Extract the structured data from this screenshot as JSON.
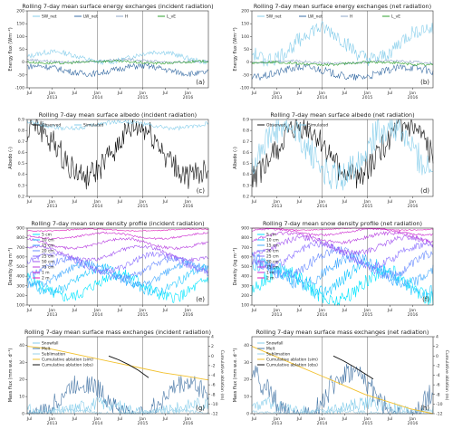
{
  "chart_data": [
    {
      "id": "a",
      "type": "line",
      "title": "Rolling 7-day mean surface energy exchanges (incident radiation)",
      "ylabel": "Energy flux (Wm⁻²)",
      "ylim": [
        -100,
        200
      ],
      "yticks": [
        "200",
        "150",
        "100",
        "50",
        "0",
        "-50",
        "-100"
      ],
      "panel_label": "(a)",
      "legend": [
        "SW_net",
        "LW_net",
        "H",
        "L_vE"
      ],
      "series": [
        {
          "name": "SW_net",
          "color": "#87ceeb",
          "base": 20,
          "amp": 20,
          "noise": 10,
          "values": []
        },
        {
          "name": "LW_net",
          "color": "#3a6ea5",
          "base": -30,
          "amp": 15,
          "noise": 12,
          "values": []
        },
        {
          "name": "H",
          "color": "#8fa6c8",
          "base": 5,
          "amp": 5,
          "noise": 5,
          "values": []
        },
        {
          "name": "L_vE",
          "color": "#2ca02c",
          "base": 0,
          "amp": 4,
          "noise": 5,
          "values": []
        }
      ]
    },
    {
      "id": "b",
      "type": "line",
      "title": "Rolling 7-day mean surface energy exchanges (net radiation)",
      "ylabel": "Energy flux (Wm⁻²)",
      "ylim": [
        -100,
        200
      ],
      "yticks": [
        "200",
        "150",
        "100",
        "50",
        "0",
        "-50",
        "-100"
      ],
      "panel_label": "(b)",
      "legend": [
        "SW_net",
        "LW_net",
        "H",
        "L_vE"
      ],
      "series": [
        {
          "name": "SW_net",
          "color": "#87ceeb",
          "base": 70,
          "amp": 60,
          "noise": 30,
          "values": []
        },
        {
          "name": "LW_net",
          "color": "#3a6ea5",
          "base": -40,
          "amp": 20,
          "noise": 15,
          "values": []
        },
        {
          "name": "H",
          "color": "#8fa6c8",
          "base": 0,
          "amp": 5,
          "noise": 5,
          "values": []
        },
        {
          "name": "L_vE",
          "color": "#2ca02c",
          "base": -5,
          "amp": 5,
          "noise": 5,
          "values": []
        }
      ]
    },
    {
      "id": "c",
      "type": "line",
      "title": "Rolling 7-day mean surface albedo (incident radiation)",
      "ylabel": "Albedo (-)",
      "ylim": [
        0.2,
        0.9
      ],
      "yticks": [
        "0.9",
        "0.8",
        "0.7",
        "0.6",
        "0.5",
        "0.4",
        "0.3",
        "0.2"
      ],
      "panel_label": "(c)",
      "legend": [
        "Observed",
        "Simulated"
      ],
      "series": [
        {
          "name": "Observed",
          "color": "#111111",
          "base": 0.6,
          "amp": 0.22,
          "noise": 0.12,
          "values": []
        },
        {
          "name": "Simulated",
          "color": "#87ceeb",
          "base": 0.85,
          "amp": 0.03,
          "noise": 0.02,
          "values": []
        }
      ]
    },
    {
      "id": "d",
      "type": "line",
      "title": "Rolling 7-day mean surface albedo (net radiation)",
      "ylabel": "Albedo (-)",
      "ylim": [
        0.2,
        0.9
      ],
      "yticks": [
        "0.9",
        "0.8",
        "0.7",
        "0.6",
        "0.5",
        "0.4",
        "0.3",
        "0.2"
      ],
      "panel_label": "(d)",
      "legend": [
        "Observed",
        "Simulated"
      ],
      "series": [
        {
          "name": "Observed",
          "color": "#111111",
          "base": 0.6,
          "amp": 0.22,
          "noise": 0.12,
          "values": []
        },
        {
          "name": "Simulated",
          "color": "#87ceeb",
          "base": 0.6,
          "amp": 0.22,
          "noise": 0.14,
          "values": []
        }
      ]
    },
    {
      "id": "e",
      "type": "line",
      "title": "Rolling 7-day mean snow density profile (incident radiation)",
      "ylabel": "Density (kg m⁻³)",
      "ylim": [
        100,
        900
      ],
      "yticks": [
        "900",
        "800",
        "700",
        "600",
        "500",
        "400",
        "300",
        "200",
        "100"
      ],
      "panel_label": "(e)",
      "legend": [
        "5 cm",
        "10 cm",
        "15 cm",
        "20 cm",
        "25 cm",
        "50 cm",
        "75 cm",
        "1 m",
        "2 m"
      ],
      "series": [
        {
          "name": "5 cm",
          "color": "#00e5ff",
          "base": 300,
          "amp": 120,
          "noise": 60,
          "values": []
        },
        {
          "name": "10 cm",
          "color": "#22c8ff",
          "base": 360,
          "amp": 120,
          "noise": 50,
          "values": []
        },
        {
          "name": "15 cm",
          "color": "#44aaff",
          "base": 420,
          "amp": 110,
          "noise": 40,
          "values": []
        },
        {
          "name": "20 cm",
          "color": "#6a8cff",
          "base": 480,
          "amp": 100,
          "noise": 35,
          "values": []
        },
        {
          "name": "25 cm",
          "color": "#8a70ff",
          "base": 540,
          "amp": 90,
          "noise": 30,
          "values": []
        },
        {
          "name": "50 cm",
          "color": "#a255f0",
          "base": 640,
          "amp": 70,
          "noise": 20,
          "values": []
        },
        {
          "name": "75 cm",
          "color": "#b83ee0",
          "base": 740,
          "amp": 50,
          "noise": 15,
          "values": []
        },
        {
          "name": "1 m",
          "color": "#cc2ad0",
          "base": 820,
          "amp": 30,
          "noise": 10,
          "values": []
        },
        {
          "name": "2 m",
          "color": "#e01ab8",
          "base": 880,
          "amp": 10,
          "noise": 5,
          "values": []
        }
      ]
    },
    {
      "id": "f",
      "type": "line",
      "title": "Rolling 7-day mean snow density profile (net radiation)",
      "ylabel": "Density (kg m⁻³)",
      "ylim": [
        100,
        900
      ],
      "yticks": [
        "900",
        "800",
        "700",
        "600",
        "500",
        "400",
        "300",
        "200",
        "100"
      ],
      "panel_label": "(f)",
      "legend": [
        "5 cm",
        "10 cm",
        "15 cm",
        "20 cm",
        "25 cm",
        "50 cm",
        "75 cm",
        "1 m",
        "2 m"
      ],
      "series": [
        {
          "name": "5 cm",
          "color": "#00e5ff",
          "base": 300,
          "amp": 150,
          "noise": 80,
          "values": []
        },
        {
          "name": "10 cm",
          "color": "#22c8ff",
          "base": 380,
          "amp": 150,
          "noise": 70,
          "values": []
        },
        {
          "name": "15 cm",
          "color": "#44aaff",
          "base": 460,
          "amp": 140,
          "noise": 60,
          "values": []
        },
        {
          "name": "20 cm",
          "color": "#6a8cff",
          "base": 540,
          "amp": 130,
          "noise": 50,
          "values": []
        },
        {
          "name": "25 cm",
          "color": "#8a70ff",
          "base": 620,
          "amp": 110,
          "noise": 40,
          "values": []
        },
        {
          "name": "50 cm",
          "color": "#a255f0",
          "base": 720,
          "amp": 80,
          "noise": 30,
          "values": []
        },
        {
          "name": "75 cm",
          "color": "#b83ee0",
          "base": 800,
          "amp": 50,
          "noise": 20,
          "values": []
        },
        {
          "name": "1 m",
          "color": "#cc2ad0",
          "base": 860,
          "amp": 30,
          "noise": 10,
          "values": []
        },
        {
          "name": "2 m",
          "color": "#e01ab8",
          "base": 890,
          "amp": 10,
          "noise": 5,
          "values": []
        }
      ]
    },
    {
      "id": "g",
      "type": "line",
      "title": "Rolling 7-day mean surface mass exchanges (incident radiation)",
      "ylabel": "Mass flux (mm w.e. d⁻¹)",
      "ylim": [
        0,
        45
      ],
      "yticks": [
        "40",
        "30",
        "20",
        "10",
        "0"
      ],
      "y2label": "Cumulative ablation (m)",
      "y2lim": [
        -12,
        4
      ],
      "y2ticks": [
        "4",
        "2",
        "0",
        "-2",
        "-4",
        "-6",
        "-8",
        "-10",
        "-12"
      ],
      "panel_label": "(g)",
      "legend": [
        "Snowfall",
        "Melt",
        "Sublimation",
        "Cumulative ablation (sim)",
        "Cumulative ablation (obs)"
      ],
      "series": [
        {
          "name": "Snowfall",
          "color": "#87ceeb",
          "base": 3,
          "amp": 3,
          "noise": 4,
          "values": []
        },
        {
          "name": "Melt",
          "color": "#4a79a8",
          "base": 8,
          "amp": 10,
          "noise": 6,
          "values": []
        },
        {
          "name": "Sublimation",
          "color": "#9ad0e8",
          "base": 1,
          "amp": 1,
          "noise": 1,
          "values": []
        }
      ],
      "cum_sim": {
        "name": "Cumulative ablation (sim)",
        "color": "#f2c12e",
        "values": [
          2,
          1.5,
          0.5,
          -0.5,
          -1.5,
          -2.5,
          -3.5,
          -4.2,
          -5
        ]
      },
      "cum_obs": {
        "name": "Cumulative ablation (obs)",
        "color": "#111111",
        "values": [
          0,
          -0.8,
          -1.8,
          -3,
          -4.5
        ]
      }
    },
    {
      "id": "h",
      "type": "line",
      "title": "Rolling 7-day mean surface mass exchanges (net radiation)",
      "ylabel": "Mass flux (mm w.e. d⁻¹)",
      "ylim": [
        0,
        45
      ],
      "yticks": [
        "40",
        "30",
        "20",
        "10",
        "0"
      ],
      "y2label": "Cumulative ablation (m)",
      "y2lim": [
        -12,
        4
      ],
      "y2ticks": [
        "4",
        "2",
        "0",
        "-2",
        "-4",
        "-6",
        "-8",
        "-10",
        "-12"
      ],
      "panel_label": "(h)",
      "legend": [
        "Snowfall",
        "Melt",
        "Sublimation",
        "Cumulative ablation (sim)",
        "Cumulative ablation (obs)"
      ],
      "series": [
        {
          "name": "Snowfall",
          "color": "#87ceeb",
          "base": 3,
          "amp": 3,
          "noise": 4,
          "values": []
        },
        {
          "name": "Melt",
          "color": "#4a79a8",
          "base": 10,
          "amp": 14,
          "noise": 7,
          "values": []
        },
        {
          "name": "Sublimation",
          "color": "#9ad0e8",
          "base": 1,
          "amp": 1,
          "noise": 1,
          "values": []
        }
      ],
      "cum_sim": {
        "name": "Cumulative ablation (sim)",
        "color": "#f2c12e",
        "values": [
          2,
          0,
          -2,
          -4,
          -6,
          -8,
          -9.5,
          -11,
          -12
        ]
      },
      "cum_obs": {
        "name": "Cumulative ablation (obs)",
        "color": "#111111",
        "values": [
          0,
          -1,
          -2.2,
          -3.5,
          -4.8
        ]
      }
    }
  ],
  "xaxis": {
    "ticks": [
      "Jul",
      "Jan\n2013",
      "Jul",
      "Jan\n2014",
      "Jul",
      "Jan\n2015",
      "Jul",
      "Jan\n2016"
    ],
    "vlines": [
      2,
      4
    ]
  }
}
